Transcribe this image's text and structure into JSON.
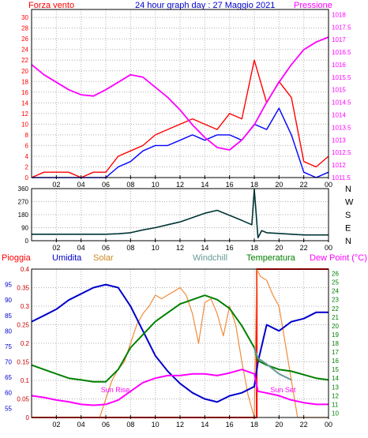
{
  "title": "24 hour graph day : 27 Maggio 2021",
  "x_ticks": [
    "02",
    "04",
    "06",
    "08",
    "10",
    "12",
    "14",
    "16",
    "18",
    "20",
    "22",
    "00"
  ],
  "colors": {
    "wind": "#ff0000",
    "gust": "#0000ff",
    "pressure": "#ff00ff",
    "direction": "#003333",
    "rain": "#ff0000",
    "humidity": "#0000cc",
    "solar": "#f08c3c",
    "windchill": "#669999",
    "temperature": "#008000",
    "dewpoint": "#ff00ff",
    "grid": "#b0b0b0"
  },
  "chart_data": [
    {
      "type": "line",
      "name": "wind-pressure",
      "left_label": "Forza vento",
      "right_label": "Pressione",
      "left_ticks": [
        "0",
        "2",
        "4",
        "6",
        "8",
        "10",
        "12",
        "14",
        "16",
        "18",
        "20",
        "22",
        "24",
        "26",
        "28",
        "30"
      ],
      "right_ticks": [
        "1011.5",
        "1012",
        "1012.5",
        "1013",
        "1013.5",
        "1014",
        "1014.5",
        "1015",
        "1015.5",
        "1016",
        "1016.5",
        "1017",
        "1017.5",
        "1018"
      ],
      "ylim": [
        0,
        31.5
      ],
      "y2lim": [
        1011.5,
        1018.2
      ],
      "x_hours": [
        0,
        1,
        2,
        3,
        4,
        5,
        6,
        7,
        8,
        9,
        10,
        11,
        12,
        13,
        14,
        15,
        16,
        17,
        18,
        19,
        20,
        21,
        22,
        23,
        24
      ],
      "series": [
        {
          "key": "wind",
          "values": [
            0,
            1,
            1,
            1,
            0,
            1,
            1,
            4,
            5,
            6,
            8,
            9,
            10,
            11,
            10,
            9,
            12,
            11,
            22,
            14,
            18,
            15,
            3,
            2,
            4
          ]
        },
        {
          "key": "gust",
          "values": [
            0,
            0,
            0,
            0,
            0,
            0,
            0,
            2,
            3,
            5,
            6,
            6,
            7,
            8,
            7,
            8,
            8,
            7,
            10,
            9,
            13,
            8,
            1,
            0,
            1
          ]
        },
        {
          "key": "pressure",
          "values": [
            1016.0,
            1015.6,
            1015.3,
            1015.0,
            1014.8,
            1014.75,
            1015.0,
            1015.3,
            1015.6,
            1015.5,
            1015.1,
            1014.7,
            1014.2,
            1013.6,
            1013.1,
            1012.7,
            1012.6,
            1013.0,
            1013.6,
            1014.5,
            1015.3,
            1016.0,
            1016.6,
            1016.9,
            1017.1
          ]
        }
      ]
    },
    {
      "type": "line",
      "name": "wind-direction",
      "left_ticks": [
        "0",
        "90",
        "180",
        "270",
        "360"
      ],
      "right_ticks": [
        "N",
        "E",
        "S",
        "W",
        "N"
      ],
      "ylim": [
        0,
        360
      ],
      "x_hours": [
        0,
        1,
        2,
        3,
        4,
        5,
        6,
        7,
        8,
        9,
        10,
        11,
        12,
        13,
        14,
        15,
        16,
        17,
        17.8,
        18,
        18.3,
        18.6,
        19,
        20,
        21,
        22,
        23,
        24
      ],
      "series": [
        {
          "key": "direction",
          "values": [
            45,
            45,
            45,
            45,
            45,
            45,
            45,
            48,
            55,
            75,
            90,
            110,
            130,
            160,
            190,
            210,
            175,
            140,
            110,
            355,
            20,
            70,
            55,
            50,
            45,
            40,
            40,
            40
          ]
        }
      ]
    },
    {
      "type": "line",
      "name": "weather",
      "headers": {
        "rain": "Pioggia",
        "humidity": "Umidita",
        "solar": "Solar",
        "windchill": "Windchill",
        "temperature": "Temperatura",
        "dewpoint": "Dew Point (°C)"
      },
      "ylim_humidity": [
        52,
        100
      ],
      "ylim_temp": [
        9.5,
        26.5
      ],
      "ylim_rain": [
        0,
        0.4
      ],
      "rain_ticks": [
        "0",
        "0.05",
        "0.1",
        "0.15",
        "0.2",
        "0.25",
        "0.3",
        "0.35",
        "0.4"
      ],
      "humidity_ticks": [
        "55",
        "60",
        "65",
        "70",
        "75",
        "80",
        "85",
        "90",
        "95"
      ],
      "temp_ticks": [
        "10",
        "11",
        "12",
        "13",
        "14",
        "15",
        "16",
        "17",
        "18",
        "19",
        "20",
        "21",
        "22",
        "23",
        "24",
        "25",
        "26"
      ],
      "annotations": {
        "sunrise": "Sun Rise",
        "sunset": "Sun Set"
      },
      "x_hours": [
        0,
        1,
        2,
        3,
        4,
        5,
        6,
        7,
        8,
        9,
        10,
        11,
        12,
        13,
        14,
        15,
        16,
        17,
        18,
        18.3,
        19,
        20,
        21,
        22,
        23,
        24
      ],
      "series": [
        {
          "key": "humidity",
          "values": [
            83,
            85,
            87,
            90,
            92,
            94,
            95,
            94,
            88,
            80,
            72,
            67,
            63,
            60,
            58,
            57,
            59,
            60,
            62,
            70,
            82,
            80,
            83,
            84,
            86,
            86
          ]
        },
        {
          "key": "temperature",
          "values": [
            15.5,
            15.0,
            14.5,
            14.0,
            13.8,
            13.6,
            13.6,
            15.0,
            17.5,
            19.0,
            20.5,
            21.5,
            22.5,
            23.0,
            23.5,
            23.0,
            22.0,
            20.0,
            17.5,
            16.0,
            15.5,
            15.0,
            14.8,
            14.4,
            14.0,
            13.8
          ]
        },
        {
          "key": "windchill",
          "values": [
            null,
            null,
            null,
            null,
            null,
            null,
            null,
            null,
            null,
            null,
            null,
            null,
            null,
            null,
            null,
            null,
            null,
            null,
            17.5,
            16.3,
            15.6,
            14.5,
            13.8,
            null,
            null,
            null
          ]
        },
        {
          "key": "dewpoint",
          "values": [
            12.0,
            11.8,
            11.5,
            11.3,
            11.0,
            10.9,
            11.0,
            11.5,
            12.5,
            13.5,
            14.0,
            14.3,
            14.3,
            14.5,
            14.5,
            14.3,
            14.6,
            15.0,
            14.5,
            12.5,
            12.3,
            12.0,
            11.5,
            11.2,
            11.0,
            11.0
          ]
        }
      ],
      "solar_hours": [
        0,
        5.5,
        6,
        6.5,
        7,
        7.5,
        8,
        8.5,
        9,
        9.5,
        10,
        10.5,
        11,
        11.5,
        12,
        12.5,
        13,
        13.5,
        14,
        14.5,
        15,
        15.5,
        16,
        16.5,
        17,
        17.5,
        18,
        18.2,
        18.5,
        19,
        19.5,
        20,
        20.5,
        21,
        21.5,
        22,
        24
      ],
      "solar_values": [
        0,
        0,
        0.05,
        0.1,
        0.13,
        0.15,
        0.2,
        0.25,
        0.28,
        0.3,
        0.33,
        0.32,
        0.33,
        0.34,
        0.35,
        0.33,
        0.28,
        0.2,
        0.31,
        0.32,
        0.28,
        0.22,
        0.3,
        0.25,
        0.15,
        0.06,
        0,
        0.4,
        0.38,
        0.37,
        0.33,
        0.3,
        0.2,
        0.1,
        0,
        0,
        0
      ],
      "rain_hours": [
        0,
        18.2,
        18.2,
        24
      ],
      "rain_values": [
        0,
        0,
        0.4,
        0.4
      ]
    }
  ]
}
